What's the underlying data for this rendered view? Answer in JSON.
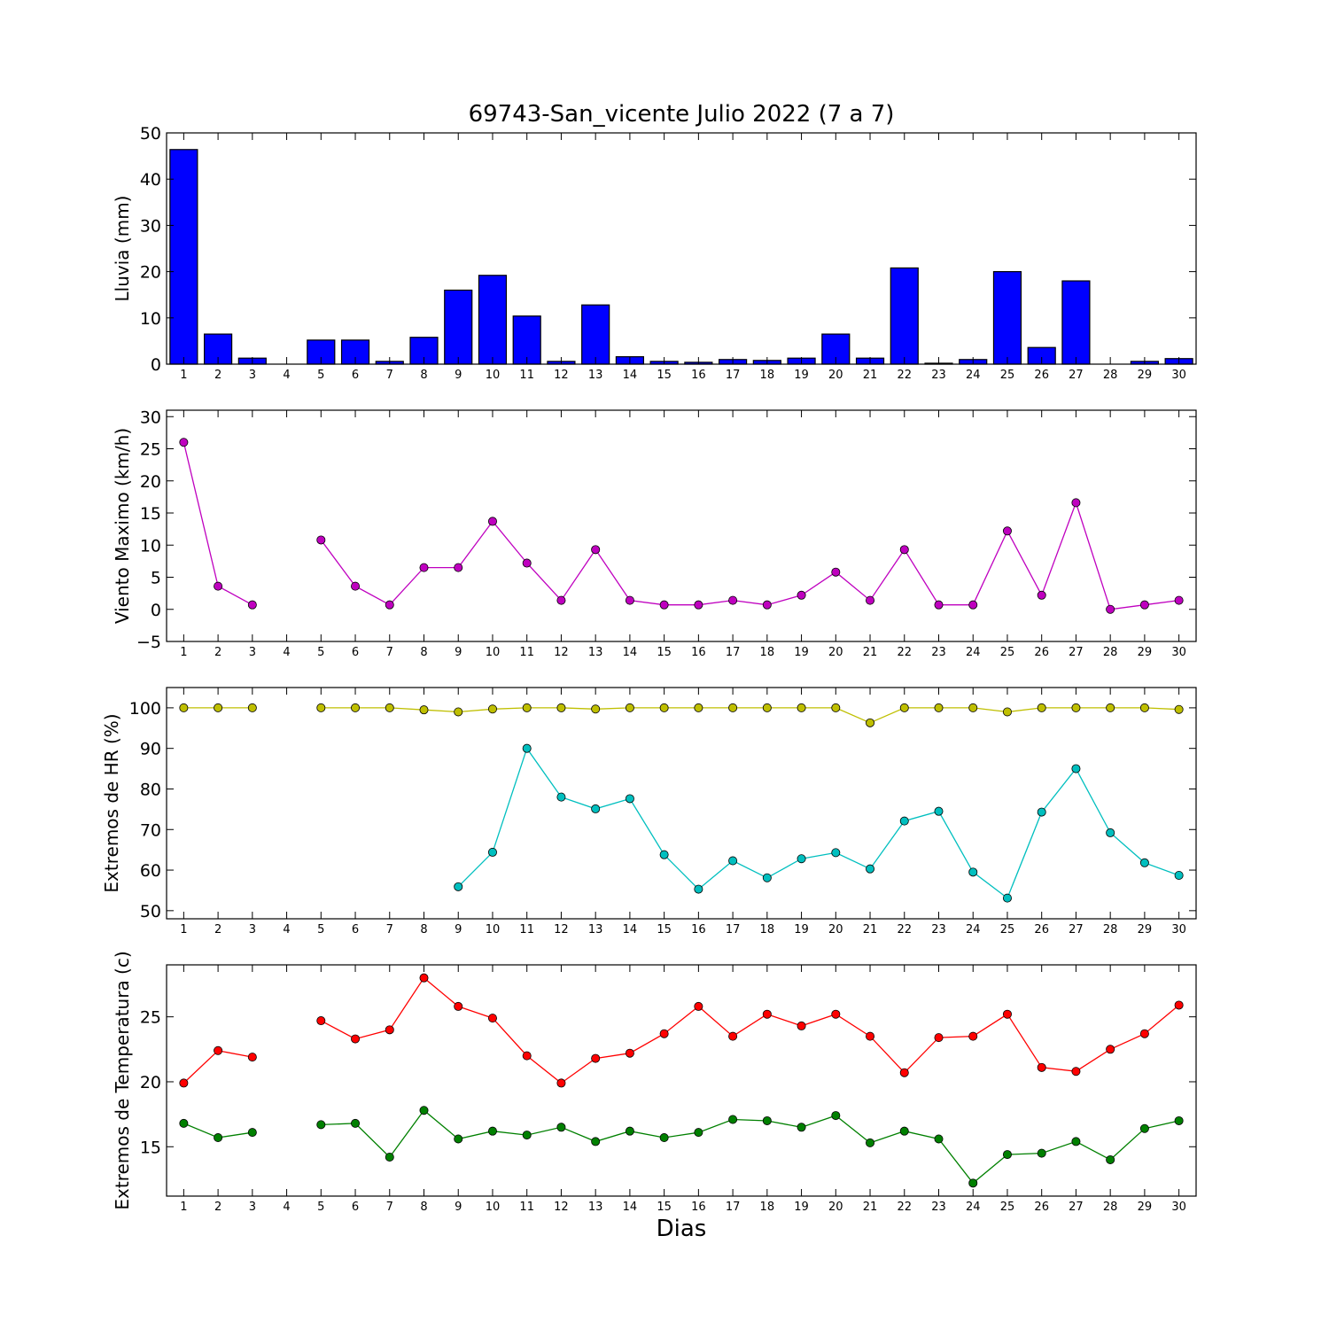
{
  "title": "69743-San_vicente Julio 2022  (7 a 7)",
  "xlabel": "Dias",
  "chart_data": [
    {
      "type": "bar",
      "ylabel": "Lluvia (mm)",
      "ylim": [
        0,
        50
      ],
      "yticks": [
        0,
        10,
        20,
        30,
        40,
        50
      ],
      "categories": [
        "1",
        "2",
        "3",
        "4",
        "5",
        "6",
        "7",
        "8",
        "9",
        "10",
        "11",
        "12",
        "13",
        "14",
        "15",
        "16",
        "17",
        "18",
        "19",
        "20",
        "21",
        "22",
        "23",
        "24",
        "25",
        "26",
        "27",
        "28",
        "29",
        "30"
      ],
      "values": [
        46.4,
        6.5,
        1.3,
        0,
        5.2,
        5.2,
        0.6,
        5.8,
        16,
        19.2,
        10.4,
        0.6,
        12.8,
        1.6,
        0.6,
        0.4,
        1,
        0.8,
        1.3,
        6.5,
        1.3,
        20.8,
        0.2,
        1,
        20,
        3.6,
        18,
        0,
        0.6,
        1.2
      ],
      "color": "#0000ff"
    },
    {
      "type": "line",
      "ylabel": "Viento Maximo (km/h)",
      "ylim": [
        -5,
        31
      ],
      "yticks": [
        -5,
        0,
        5,
        10,
        15,
        20,
        25,
        30
      ],
      "x": [
        1,
        2,
        3,
        4,
        5,
        6,
        7,
        8,
        9,
        10,
        11,
        12,
        13,
        14,
        15,
        16,
        17,
        18,
        19,
        20,
        21,
        22,
        23,
        24,
        25,
        26,
        27,
        28,
        29,
        30
      ],
      "series": [
        {
          "color": "#bf00bf",
          "values": [
            26,
            3.6,
            0.7,
            null,
            10.8,
            3.6,
            0.7,
            6.5,
            6.5,
            13.7,
            7.2,
            1.4,
            9.3,
            1.4,
            0.7,
            0.7,
            1.4,
            0.7,
            2.2,
            5.8,
            1.4,
            9.3,
            0.7,
            0.7,
            12.2,
            2.2,
            16.6,
            0,
            0.7,
            1.4
          ]
        }
      ]
    },
    {
      "type": "line",
      "ylabel": "Extremos de HR (%)",
      "ylim": [
        48,
        105
      ],
      "yticks": [
        50,
        60,
        70,
        80,
        90,
        100
      ],
      "x": [
        1,
        2,
        3,
        4,
        5,
        6,
        7,
        8,
        9,
        10,
        11,
        12,
        13,
        14,
        15,
        16,
        17,
        18,
        19,
        20,
        21,
        22,
        23,
        24,
        25,
        26,
        27,
        28,
        29,
        30
      ],
      "series": [
        {
          "color": "#bfbf00",
          "values": [
            100,
            100,
            100,
            null,
            100,
            100,
            100,
            99.5,
            99,
            99.7,
            100,
            100,
            99.7,
            100,
            100,
            100,
            100,
            100,
            100,
            100,
            96.3,
            100,
            100,
            100,
            99,
            100,
            100,
            100,
            100,
            99.6
          ]
        },
        {
          "color": "#00bfbf",
          "values": [
            null,
            null,
            null,
            null,
            null,
            null,
            null,
            null,
            55.9,
            64.4,
            90,
            78,
            75.1,
            77.6,
            63.8,
            55.3,
            62.3,
            58.1,
            62.8,
            64.3,
            60.3,
            72.1,
            74.5,
            59.5,
            53.1,
            74.3,
            85,
            69.2,
            61.8,
            58.7
          ]
        }
      ]
    },
    {
      "type": "line",
      "ylabel": "Extremos de Temperatura (c)",
      "ylim": [
        11.2,
        29
      ],
      "yticks": [
        15,
        20,
        25
      ],
      "x": [
        1,
        2,
        3,
        4,
        5,
        6,
        7,
        8,
        9,
        10,
        11,
        12,
        13,
        14,
        15,
        16,
        17,
        18,
        19,
        20,
        21,
        22,
        23,
        24,
        25,
        26,
        27,
        28,
        29,
        30
      ],
      "series": [
        {
          "color": "#ff0000",
          "values": [
            19.9,
            22.4,
            21.9,
            null,
            24.7,
            23.3,
            24,
            28,
            25.8,
            24.9,
            22,
            19.9,
            21.8,
            22.2,
            23.7,
            25.8,
            23.5,
            25.2,
            24.3,
            25.2,
            23.5,
            20.7,
            23.4,
            23.5,
            25.2,
            21.1,
            20.8,
            22.5,
            23.7,
            25.9
          ]
        },
        {
          "color": "#008000",
          "values": [
            16.8,
            15.7,
            16.1,
            null,
            16.7,
            16.8,
            14.2,
            17.8,
            15.6,
            16.2,
            15.9,
            16.5,
            15.4,
            16.2,
            15.7,
            16.1,
            17.1,
            17,
            16.5,
            17.4,
            15.3,
            16.2,
            15.6,
            12.2,
            14.4,
            14.5,
            15.4,
            14,
            16.4,
            17
          ]
        }
      ]
    }
  ]
}
